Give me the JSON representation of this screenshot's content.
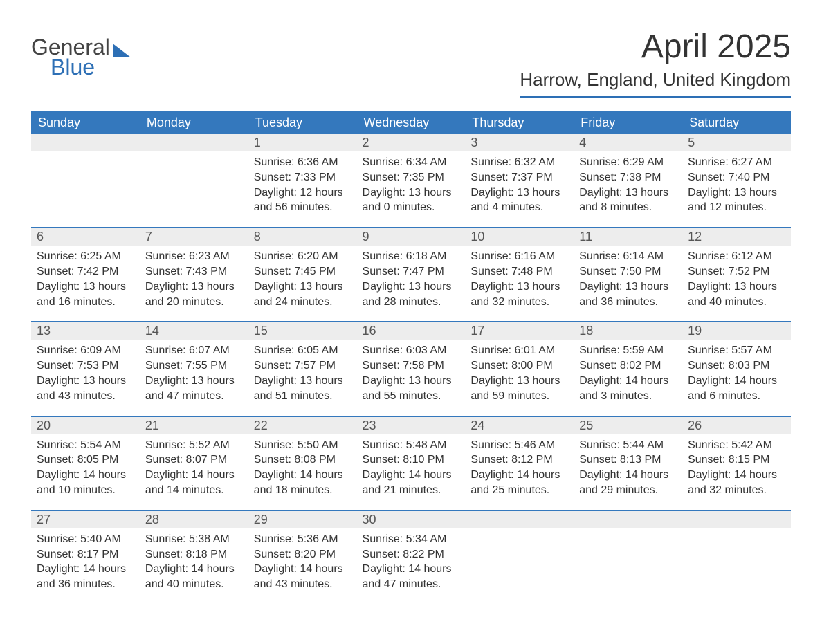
{
  "logo": {
    "text_general": "General",
    "text_blue": "Blue"
  },
  "title": "April 2025",
  "location": "Harrow, England, United Kingdom",
  "colors": {
    "header_bg": "#3478bd",
    "header_text": "#ffffff",
    "day_num_bg": "#ededed",
    "day_num_text": "#555555",
    "content_text": "#333333",
    "border": "#3478bd",
    "logo_general": "#444444",
    "logo_blue": "#2d6fb5"
  },
  "weekdays": [
    "Sunday",
    "Monday",
    "Tuesday",
    "Wednesday",
    "Thursday",
    "Friday",
    "Saturday"
  ],
  "weeks": [
    [
      {
        "day": "",
        "sunrise": "",
        "sunset": "",
        "daylight1": "",
        "daylight2": ""
      },
      {
        "day": "",
        "sunrise": "",
        "sunset": "",
        "daylight1": "",
        "daylight2": ""
      },
      {
        "day": "1",
        "sunrise": "Sunrise: 6:36 AM",
        "sunset": "Sunset: 7:33 PM",
        "daylight1": "Daylight: 12 hours",
        "daylight2": "and 56 minutes."
      },
      {
        "day": "2",
        "sunrise": "Sunrise: 6:34 AM",
        "sunset": "Sunset: 7:35 PM",
        "daylight1": "Daylight: 13 hours",
        "daylight2": "and 0 minutes."
      },
      {
        "day": "3",
        "sunrise": "Sunrise: 6:32 AM",
        "sunset": "Sunset: 7:37 PM",
        "daylight1": "Daylight: 13 hours",
        "daylight2": "and 4 minutes."
      },
      {
        "day": "4",
        "sunrise": "Sunrise: 6:29 AM",
        "sunset": "Sunset: 7:38 PM",
        "daylight1": "Daylight: 13 hours",
        "daylight2": "and 8 minutes."
      },
      {
        "day": "5",
        "sunrise": "Sunrise: 6:27 AM",
        "sunset": "Sunset: 7:40 PM",
        "daylight1": "Daylight: 13 hours",
        "daylight2": "and 12 minutes."
      }
    ],
    [
      {
        "day": "6",
        "sunrise": "Sunrise: 6:25 AM",
        "sunset": "Sunset: 7:42 PM",
        "daylight1": "Daylight: 13 hours",
        "daylight2": "and 16 minutes."
      },
      {
        "day": "7",
        "sunrise": "Sunrise: 6:23 AM",
        "sunset": "Sunset: 7:43 PM",
        "daylight1": "Daylight: 13 hours",
        "daylight2": "and 20 minutes."
      },
      {
        "day": "8",
        "sunrise": "Sunrise: 6:20 AM",
        "sunset": "Sunset: 7:45 PM",
        "daylight1": "Daylight: 13 hours",
        "daylight2": "and 24 minutes."
      },
      {
        "day": "9",
        "sunrise": "Sunrise: 6:18 AM",
        "sunset": "Sunset: 7:47 PM",
        "daylight1": "Daylight: 13 hours",
        "daylight2": "and 28 minutes."
      },
      {
        "day": "10",
        "sunrise": "Sunrise: 6:16 AM",
        "sunset": "Sunset: 7:48 PM",
        "daylight1": "Daylight: 13 hours",
        "daylight2": "and 32 minutes."
      },
      {
        "day": "11",
        "sunrise": "Sunrise: 6:14 AM",
        "sunset": "Sunset: 7:50 PM",
        "daylight1": "Daylight: 13 hours",
        "daylight2": "and 36 minutes."
      },
      {
        "day": "12",
        "sunrise": "Sunrise: 6:12 AM",
        "sunset": "Sunset: 7:52 PM",
        "daylight1": "Daylight: 13 hours",
        "daylight2": "and 40 minutes."
      }
    ],
    [
      {
        "day": "13",
        "sunrise": "Sunrise: 6:09 AM",
        "sunset": "Sunset: 7:53 PM",
        "daylight1": "Daylight: 13 hours",
        "daylight2": "and 43 minutes."
      },
      {
        "day": "14",
        "sunrise": "Sunrise: 6:07 AM",
        "sunset": "Sunset: 7:55 PM",
        "daylight1": "Daylight: 13 hours",
        "daylight2": "and 47 minutes."
      },
      {
        "day": "15",
        "sunrise": "Sunrise: 6:05 AM",
        "sunset": "Sunset: 7:57 PM",
        "daylight1": "Daylight: 13 hours",
        "daylight2": "and 51 minutes."
      },
      {
        "day": "16",
        "sunrise": "Sunrise: 6:03 AM",
        "sunset": "Sunset: 7:58 PM",
        "daylight1": "Daylight: 13 hours",
        "daylight2": "and 55 minutes."
      },
      {
        "day": "17",
        "sunrise": "Sunrise: 6:01 AM",
        "sunset": "Sunset: 8:00 PM",
        "daylight1": "Daylight: 13 hours",
        "daylight2": "and 59 minutes."
      },
      {
        "day": "18",
        "sunrise": "Sunrise: 5:59 AM",
        "sunset": "Sunset: 8:02 PM",
        "daylight1": "Daylight: 14 hours",
        "daylight2": "and 3 minutes."
      },
      {
        "day": "19",
        "sunrise": "Sunrise: 5:57 AM",
        "sunset": "Sunset: 8:03 PM",
        "daylight1": "Daylight: 14 hours",
        "daylight2": "and 6 minutes."
      }
    ],
    [
      {
        "day": "20",
        "sunrise": "Sunrise: 5:54 AM",
        "sunset": "Sunset: 8:05 PM",
        "daylight1": "Daylight: 14 hours",
        "daylight2": "and 10 minutes."
      },
      {
        "day": "21",
        "sunrise": "Sunrise: 5:52 AM",
        "sunset": "Sunset: 8:07 PM",
        "daylight1": "Daylight: 14 hours",
        "daylight2": "and 14 minutes."
      },
      {
        "day": "22",
        "sunrise": "Sunrise: 5:50 AM",
        "sunset": "Sunset: 8:08 PM",
        "daylight1": "Daylight: 14 hours",
        "daylight2": "and 18 minutes."
      },
      {
        "day": "23",
        "sunrise": "Sunrise: 5:48 AM",
        "sunset": "Sunset: 8:10 PM",
        "daylight1": "Daylight: 14 hours",
        "daylight2": "and 21 minutes."
      },
      {
        "day": "24",
        "sunrise": "Sunrise: 5:46 AM",
        "sunset": "Sunset: 8:12 PM",
        "daylight1": "Daylight: 14 hours",
        "daylight2": "and 25 minutes."
      },
      {
        "day": "25",
        "sunrise": "Sunrise: 5:44 AM",
        "sunset": "Sunset: 8:13 PM",
        "daylight1": "Daylight: 14 hours",
        "daylight2": "and 29 minutes."
      },
      {
        "day": "26",
        "sunrise": "Sunrise: 5:42 AM",
        "sunset": "Sunset: 8:15 PM",
        "daylight1": "Daylight: 14 hours",
        "daylight2": "and 32 minutes."
      }
    ],
    [
      {
        "day": "27",
        "sunrise": "Sunrise: 5:40 AM",
        "sunset": "Sunset: 8:17 PM",
        "daylight1": "Daylight: 14 hours",
        "daylight2": "and 36 minutes."
      },
      {
        "day": "28",
        "sunrise": "Sunrise: 5:38 AM",
        "sunset": "Sunset: 8:18 PM",
        "daylight1": "Daylight: 14 hours",
        "daylight2": "and 40 minutes."
      },
      {
        "day": "29",
        "sunrise": "Sunrise: 5:36 AM",
        "sunset": "Sunset: 8:20 PM",
        "daylight1": "Daylight: 14 hours",
        "daylight2": "and 43 minutes."
      },
      {
        "day": "30",
        "sunrise": "Sunrise: 5:34 AM",
        "sunset": "Sunset: 8:22 PM",
        "daylight1": "Daylight: 14 hours",
        "daylight2": "and 47 minutes."
      },
      {
        "day": "",
        "sunrise": "",
        "sunset": "",
        "daylight1": "",
        "daylight2": ""
      },
      {
        "day": "",
        "sunrise": "",
        "sunset": "",
        "daylight1": "",
        "daylight2": ""
      },
      {
        "day": "",
        "sunrise": "",
        "sunset": "",
        "daylight1": "",
        "daylight2": ""
      }
    ]
  ]
}
